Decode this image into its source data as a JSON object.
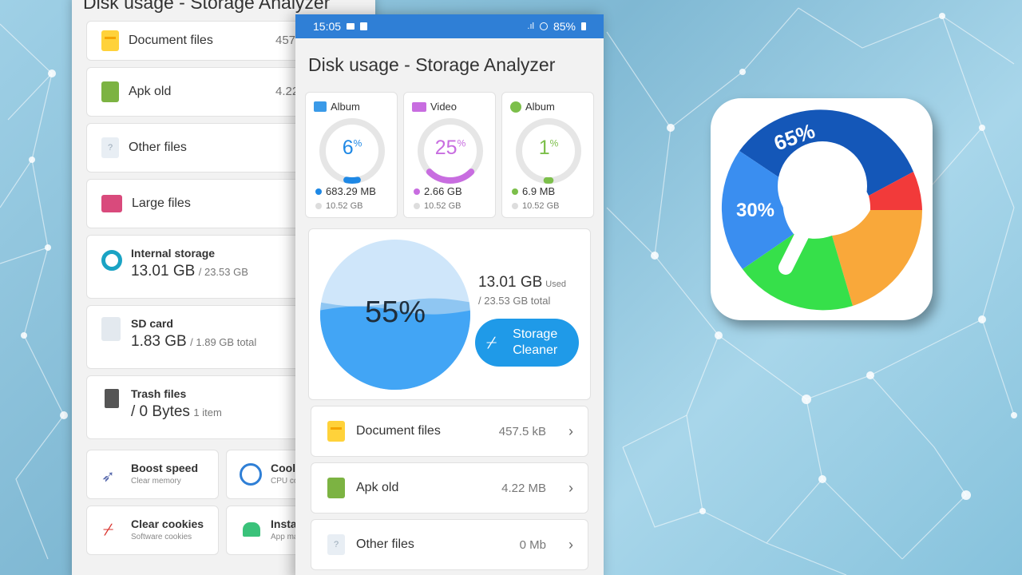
{
  "back": {
    "title": "Disk usage - Storage Analyzer",
    "items": [
      {
        "label": "Document files",
        "value": "457.",
        "icon": "document-icon"
      },
      {
        "label": "Apk old",
        "value": "4.22",
        "icon": "android-icon"
      },
      {
        "label": "Other files",
        "value": "(",
        "icon": "unknown-file-icon"
      },
      {
        "label": "Large files",
        "value": "",
        "icon": "folder-icon"
      }
    ],
    "internal": {
      "title": "Internal storage",
      "used": "13.01 GB",
      "total": "/ 23.53 GB"
    },
    "sd": {
      "title": "SD card",
      "used": "1.83 GB",
      "total": "/ 1.89 GB total"
    },
    "trash": {
      "title": "Trash files",
      "used": "/ 0 Bytes",
      "count": "1 item"
    },
    "tools": [
      {
        "title": "Boost speed",
        "sub": "Clear memory"
      },
      {
        "title": "Coole",
        "sub": "CPU co"
      },
      {
        "title": "Clear cookies",
        "sub": "Software cookies"
      },
      {
        "title": "Installe",
        "sub": "App ma"
      }
    ]
  },
  "status": {
    "time": "15:05",
    "battery": "85%"
  },
  "title": "Disk usage - Storage Analyzer",
  "media": [
    {
      "label": "Album",
      "percent": "6",
      "pct_sign": "%",
      "used": "683.29 MB",
      "total": "10.52 GB",
      "color": "#1e88e5",
      "fraction": 0.06,
      "icon": "image-icon"
    },
    {
      "label": "Video",
      "percent": "25",
      "pct_sign": "%",
      "used": "2.66 GB",
      "total": "10.52 GB",
      "color": "#c86de0",
      "fraction": 0.25,
      "icon": "video-icon"
    },
    {
      "label": "Album",
      "percent": "1",
      "pct_sign": "%",
      "used": "6.9 MB",
      "total": "10.52 GB",
      "color": "#7cbf4a",
      "fraction": 0.01,
      "icon": "audio-icon"
    }
  ],
  "storage": {
    "percent": "55%",
    "used": "13.01 GB",
    "used_label": "Used",
    "total": "/ 23.53 GB total",
    "button": "Storage Cleaner",
    "fraction": 0.55
  },
  "list": [
    {
      "label": "Document files",
      "value": "457.5 kB"
    },
    {
      "label": "Apk old",
      "value": "4.22 MB"
    },
    {
      "label": "Other files",
      "value": "0 Mb"
    }
  ],
  "icon_labels": {
    "large": "65%",
    "mid": "30%"
  },
  "colors": {
    "accent": "#2f7fd6",
    "button": "#1f9ae8",
    "water": "#42a5f5",
    "water_light": "#cfe6fa"
  }
}
